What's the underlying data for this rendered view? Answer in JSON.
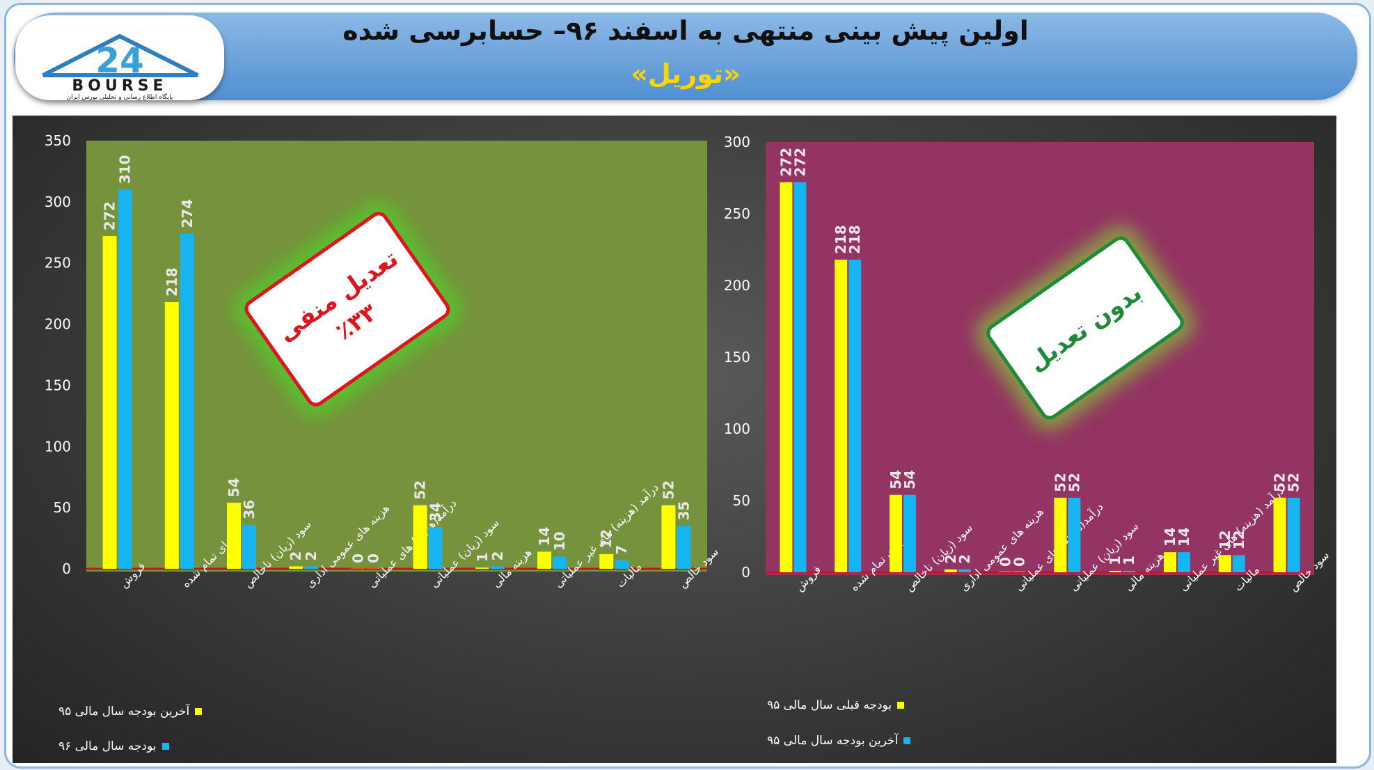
{
  "header": {
    "title_line1": "اولین پیش بینی منتهی به اسفند ۹۶– حسابرسی شده",
    "title_line2": "«توریل»",
    "logo_text": "BOURSE",
    "logo_subtitle": "پایگاه اطلاع رسانی و تحلیلی بورس ایران"
  },
  "colors": {
    "yellow": "#ffff00",
    "blue": "#16b4f0",
    "left_plot_bg": "#77923c",
    "right_plot_bg": "#943462",
    "stamp_red": "#e0141c",
    "stamp_green": "#1f8a3a"
  },
  "stamps": {
    "left_line1": "تعدیل منفی",
    "left_line2": "٪۳۳",
    "right": "بدون تعدیل"
  },
  "chart_data": [
    {
      "type": "bar",
      "categories": [
        "فروش",
        "بهای تمام شده",
        "سود (زیان) ناخالص",
        "هزینه های عمومی اداری",
        "درآمد(هزینه) های عملیاتی",
        "سود (زیان) عملیاتی",
        "هزینه مالی",
        "درآمد (هزینه) های غیر عملیاتی",
        "مالیات",
        "سود خالص"
      ],
      "series": [
        {
          "name": "آخرین بودجه سال مالی ۹۵",
          "color": "yellow",
          "values": [
            272,
            218,
            54,
            2,
            0,
            52,
            1,
            14,
            12,
            52
          ]
        },
        {
          "name": "بودجه سال مالی ۹۶",
          "color": "blue",
          "values": [
            310,
            274,
            36,
            2,
            0,
            34,
            2,
            10,
            7,
            35
          ]
        }
      ],
      "ylim": [
        0,
        350
      ],
      "yticks": [
        0,
        50,
        100,
        150,
        200,
        250,
        300,
        350
      ],
      "grid": false,
      "legend_position": "bottom-left"
    },
    {
      "type": "bar",
      "categories": [
        "فروش",
        "بهای تمام شده",
        "سود (زیان) ناخالص",
        "هزینه های عمومی اداری",
        "درآمد(هزینه) های عملیاتی",
        "سود (زیان) عملیاتی",
        "هزینه مالی",
        "درآمد (هزینه) های غیر عملیاتی",
        "مالیات",
        "سود خالص"
      ],
      "series": [
        {
          "name": "بودجه قبلی سال مالی ۹۵",
          "color": "yellow",
          "values": [
            272,
            218,
            54,
            2,
            0,
            52,
            1,
            14,
            12,
            52
          ]
        },
        {
          "name": "آخرین بودجه سال مالی ۹۵",
          "color": "blue",
          "values": [
            272,
            218,
            54,
            2,
            0,
            52,
            1,
            14,
            12,
            52
          ]
        }
      ],
      "ylim": [
        0,
        300
      ],
      "yticks": [
        0,
        50,
        100,
        150,
        200,
        250,
        300
      ],
      "grid": false,
      "legend_position": "bottom-left"
    }
  ]
}
